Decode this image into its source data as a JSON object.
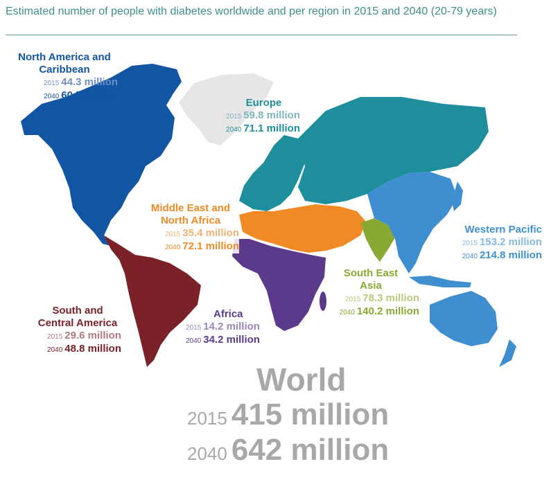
{
  "title": "Estimated number of people with diabetes worldwide and per region in 2015 and 2040 (20-79 years)",
  "colors": {
    "north_america": "#1155a3",
    "europe": "#1f8e9c",
    "mena": "#f08a24",
    "western_pacific": "#3f8fd0",
    "south_east_asia": "#8aa834",
    "south_central_america": "#7a2228",
    "africa": "#5b3a8c",
    "greenland": "#e6e6e6",
    "world_text": "#a8a8a8"
  },
  "regions": [
    {
      "id": "north_america",
      "name": "North America and Caribbean",
      "y2015_label": "2015",
      "v2015": "44.3 million",
      "y2040_label": "2040",
      "v2040": "60.5 million"
    },
    {
      "id": "europe",
      "name": "Europe",
      "y2015_label": "2015",
      "v2015": "59.8 million",
      "y2040_label": "2040",
      "v2040": "71.1 million"
    },
    {
      "id": "mena",
      "name": "Middle East and North Africa",
      "y2015_label": "2015",
      "v2015": "35.4 million",
      "y2040_label": "2040",
      "v2040": "72.1 million"
    },
    {
      "id": "western_pacific",
      "name": "Western Pacific",
      "y2015_label": "2015",
      "v2015": "153.2 million",
      "y2040_label": "2040",
      "v2040": "214.8 million"
    },
    {
      "id": "south_east_asia",
      "name": "South East Asia",
      "y2015_label": "2015",
      "v2015": "78.3 million",
      "y2040_label": "2040",
      "v2040": "140.2 million"
    },
    {
      "id": "south_central_america",
      "name": "South and Central America",
      "y2015_label": "2015",
      "v2015": "29.6 million",
      "y2040_label": "2040",
      "v2040": "48.8 million"
    },
    {
      "id": "africa",
      "name": "Africa",
      "y2015_label": "2015",
      "v2015": "14.2 million",
      "y2040_label": "2040",
      "v2040": "34.2 million"
    }
  ],
  "world": {
    "name": "World",
    "y2015_label": "2015",
    "v2015": "415 million",
    "y2040_label": "2040",
    "v2040": "642 million"
  }
}
